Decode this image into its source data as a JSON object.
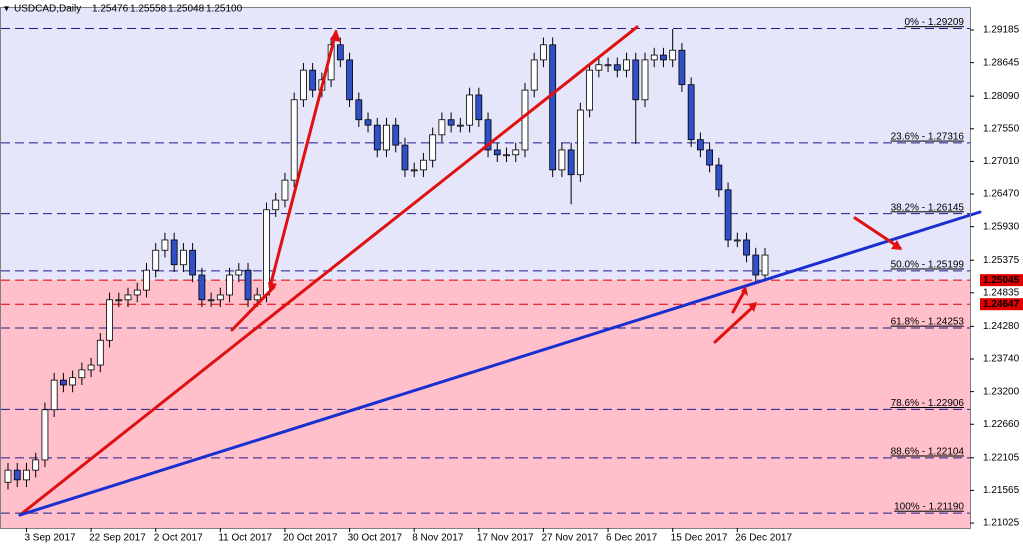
{
  "chart_data": {
    "type": "candlestick",
    "title": "USDCAD,Daily",
    "header_values": [
      1.25476,
      1.25558,
      1.25048,
      {
        "value": 1.251,
        "label": "1.25100"
      }
    ],
    "categories": [
      null,
      null,
      "3 Sep 2017",
      null,
      null,
      null,
      null,
      null,
      null,
      "22 Sep 2017",
      null,
      null,
      null,
      null,
      null,
      null,
      "2 Oct 2017",
      null,
      null,
      null,
      null,
      null,
      null,
      "11 Oct 2017",
      null,
      null,
      null,
      null,
      null,
      null,
      "20 Oct 2017",
      null,
      null,
      null,
      null,
      null,
      null,
      "30 Oct 2017",
      null,
      null,
      null,
      null,
      null,
      null,
      "8 Nov 2017",
      null,
      null,
      null,
      null,
      null,
      null,
      "17 Nov 2017",
      null,
      null,
      null,
      null,
      null,
      null,
      "27 Nov 2017",
      null,
      null,
      null,
      null,
      null,
      null,
      "6 Dec 2017",
      null,
      null,
      null,
      null,
      null,
      null,
      "15 Dec 2017",
      null,
      null,
      null,
      null,
      null,
      null,
      "26 Dec 2017",
      null,
      null,
      null
    ],
    "open": [
      1.217,
      1.219,
      1.2174,
      1.219,
      1.2207,
      1.229,
      1.2339,
      1.2331,
      1.2343,
      1.2356,
      1.2364,
      1.2405,
      1.2472,
      1.2472,
      1.248,
      1.2488,
      1.2521,
      1.2554,
      1.2571,
      1.253,
      1.2554,
      1.2513,
      1.2472,
      1.2472,
      1.248,
      1.2513,
      1.2521,
      1.2472,
      1.248,
      1.2621,
      1.2637,
      1.267,
      1.2803,
      1.2852,
      1.2819,
      1.2836,
      1.2894,
      1.2869,
      1.2803,
      1.277,
      1.2761,
      1.272,
      1.2761,
      1.2728,
      1.2687,
      1.2687,
      1.2703,
      1.2745,
      1.277,
      1.2761,
      1.2761,
      1.2811,
      1.277,
      1.272,
      1.2712,
      1.2712,
      1.272,
      1.2819,
      1.2869,
      1.2894,
      1.2687,
      1.272,
      1.2679,
      1.2786,
      1.2852,
      1.2861,
      1.2861,
      1.2852,
      1.2869,
      1.2803,
      1.2869,
      1.2877,
      1.2869,
      1.2885,
      1.2828,
      1.2737,
      1.272,
      1.2695,
      1.2654,
      1.2571,
      1.2571,
      1.2546,
      1.2513
    ],
    "high": [
      1.2202,
      1.2202,
      1.2202,
      1.2219,
      1.2302,
      1.2351,
      1.2351,
      1.2355,
      1.2368,
      1.2376,
      1.2417,
      1.2484,
      1.2484,
      1.2492,
      1.25,
      1.2533,
      1.2566,
      1.2583,
      1.2583,
      1.2566,
      1.2566,
      1.2525,
      1.2484,
      1.2492,
      1.2525,
      1.2533,
      1.2533,
      1.2492,
      1.2633,
      1.2649,
      1.2682,
      1.2815,
      1.2864,
      1.2864,
      1.2848,
      1.2906,
      1.2906,
      1.2881,
      1.2815,
      1.2782,
      1.2773,
      1.2773,
      1.2773,
      1.274,
      1.2699,
      1.2715,
      1.2757,
      1.2782,
      1.2782,
      1.2773,
      1.2823,
      1.2823,
      1.2782,
      1.2732,
      1.2724,
      1.2732,
      1.2831,
      1.2881,
      1.2906,
      1.2906,
      1.2732,
      1.2732,
      1.2798,
      1.2864,
      1.2873,
      1.2873,
      1.2873,
      1.2881,
      1.2881,
      1.2881,
      1.2889,
      1.2889,
      1.292,
      1.2897,
      1.284,
      1.2749,
      1.2732,
      1.2707,
      1.2666,
      1.2583,
      1.2583,
      1.2558,
      1.2558
    ],
    "low": [
      1.2158,
      1.2162,
      1.2162,
      1.2178,
      1.2195,
      1.2278,
      1.2319,
      1.2319,
      1.2331,
      1.2344,
      1.2352,
      1.2393,
      1.246,
      1.246,
      1.2468,
      1.2476,
      1.2509,
      1.2542,
      1.2518,
      1.2518,
      1.2501,
      1.246,
      1.246,
      1.246,
      1.2468,
      1.2501,
      1.246,
      1.246,
      1.2468,
      1.2609,
      1.2625,
      1.2658,
      1.2791,
      1.2807,
      1.2807,
      1.2824,
      1.2857,
      1.2791,
      1.2758,
      1.2749,
      1.2708,
      1.2708,
      1.2716,
      1.2675,
      1.2675,
      1.2675,
      1.2691,
      1.2733,
      1.2749,
      1.2749,
      1.2749,
      1.2758,
      1.2708,
      1.27,
      1.27,
      1.27,
      1.2708,
      1.2807,
      1.2857,
      1.2675,
      1.2675,
      1.263,
      1.2667,
      1.2774,
      1.284,
      1.2849,
      1.284,
      1.284,
      1.273,
      1.2791,
      1.2857,
      1.2857,
      1.2857,
      1.2816,
      1.2725,
      1.2708,
      1.2683,
      1.2642,
      1.2559,
      1.2559,
      1.2534,
      1.2501,
      1.2505
    ],
    "close": [
      1.219,
      1.2174,
      1.219,
      1.2207,
      1.229,
      1.2339,
      1.2331,
      1.2343,
      1.2356,
      1.2364,
      1.2405,
      1.2472,
      1.2472,
      1.248,
      1.2488,
      1.2521,
      1.2554,
      1.2571,
      1.253,
      1.2554,
      1.2513,
      1.2472,
      1.2472,
      1.248,
      1.2513,
      1.2521,
      1.2472,
      1.248,
      1.2621,
      1.2637,
      1.267,
      1.2803,
      1.2852,
      1.2819,
      1.2836,
      1.2894,
      1.2869,
      1.2803,
      1.277,
      1.2761,
      1.272,
      1.2761,
      1.2728,
      1.2687,
      1.2687,
      1.2703,
      1.2745,
      1.277,
      1.2761,
      1.2761,
      1.2811,
      1.277,
      1.272,
      1.2712,
      1.2712,
      1.272,
      1.2819,
      1.2869,
      1.2894,
      1.2687,
      1.272,
      1.2679,
      1.2786,
      1.2852,
      1.2861,
      1.2861,
      1.2852,
      1.2869,
      1.2803,
      1.2869,
      1.2877,
      1.2869,
      1.2885,
      1.2828,
      1.2737,
      1.272,
      1.2695,
      1.2654,
      1.2571,
      1.2571,
      1.2546,
      1.2513,
      1.2546
    ],
    "ylim": [
      1.20943,
      1.29549
    ],
    "yticks": [
      1.29185,
      1.28645,
      {
        "value": 1.2809,
        "label": "1.28090"
      },
      {
        "value": 1.2755,
        "label": "1.27550"
      },
      {
        "value": 1.2701,
        "label": "1.27010"
      },
      {
        "value": 1.2647,
        "label": "1.26470"
      },
      {
        "value": 1.2593,
        "label": "1.25930"
      },
      1.25375,
      1.24835,
      {
        "value": 1.2428,
        "label": "1.24280"
      },
      {
        "value": 1.2374,
        "label": "1.23740"
      },
      {
        "value": 1.232,
        "label": "1.23200"
      },
      {
        "value": 1.2266,
        "label": "1.22660"
      },
      1.22105,
      1.21565,
      1.21025
    ],
    "levels": [
      {
        "label": "0% - 1.29209",
        "value": 1.29209
      },
      {
        "label": "23.6% - 1.27316",
        "value": 1.27316
      },
      {
        "label": "38.2% - 1.26145",
        "value": 1.26145
      },
      {
        "label": "50.0% - 1.25199",
        "value": 1.25199
      },
      {
        "label": "61.8% - 1.24253",
        "value": 1.24253
      },
      {
        "label": "78.6% - 1.22906",
        "value": 1.22906
      },
      {
        "label": "88.6% - 1.22104",
        "value": 1.22104
      },
      {
        "label": "100% - 1.21190",
        "value": 1.2119
      }
    ],
    "price_markers": [
      1.25045,
      1.24647
    ],
    "bull_color": "#ffffff",
    "bear_color": "#3050c8",
    "level_color": "#1c1c8c",
    "marker_color": "#e00000"
  }
}
